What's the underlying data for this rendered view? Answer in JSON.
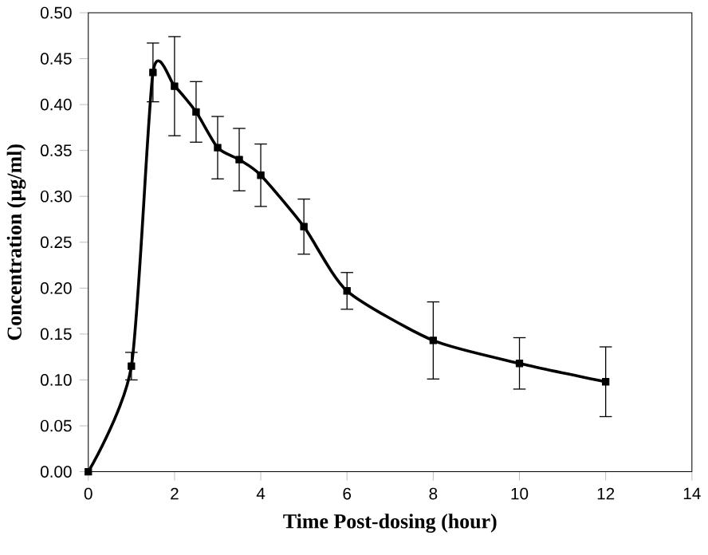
{
  "chart_data": {
    "type": "line",
    "xlabel": "Time Post-dosing (hour)",
    "ylabel": "Concentration (µg/ml)",
    "x": [
      0,
      1,
      1.5,
      2,
      2.5,
      3,
      3.5,
      4,
      5,
      6,
      8,
      10,
      12
    ],
    "series": [
      {
        "color": "#000000",
        "values": [
          0,
          0.115,
          0.435,
          0.42,
          0.392,
          0.353,
          0.34,
          0.323,
          0.267,
          0.197,
          0.143,
          0.118,
          0.098
        ],
        "errors": [
          null,
          0.015,
          0.032,
          0.054,
          0.033,
          0.034,
          0.034,
          0.034,
          0.03,
          0.02,
          0.042,
          0.028,
          0.038
        ]
      }
    ],
    "xlim": [
      0,
      14
    ],
    "xticks": [
      0,
      2,
      4,
      6,
      8,
      10,
      12,
      14
    ],
    "ylim": [
      0,
      0.5
    ],
    "yticks": [
      {
        "value": 0,
        "label": "0.00"
      },
      {
        "value": 0.05,
        "label": "0.05"
      },
      {
        "value": 0.1,
        "label": "0.10"
      },
      {
        "value": 0.15,
        "label": "0.15"
      },
      {
        "value": 0.2,
        "label": "0.20"
      },
      {
        "value": 0.25,
        "label": "0.25"
      },
      {
        "value": 0.3,
        "label": "0.30"
      },
      {
        "value": 0.35,
        "label": "0.35"
      },
      {
        "value": 0.4,
        "label": "0.40"
      },
      {
        "value": 0.45,
        "label": "0.45"
      },
      {
        "value": 0.5,
        "label": "0.50"
      }
    ],
    "marker": "square",
    "line_style": "solid"
  }
}
